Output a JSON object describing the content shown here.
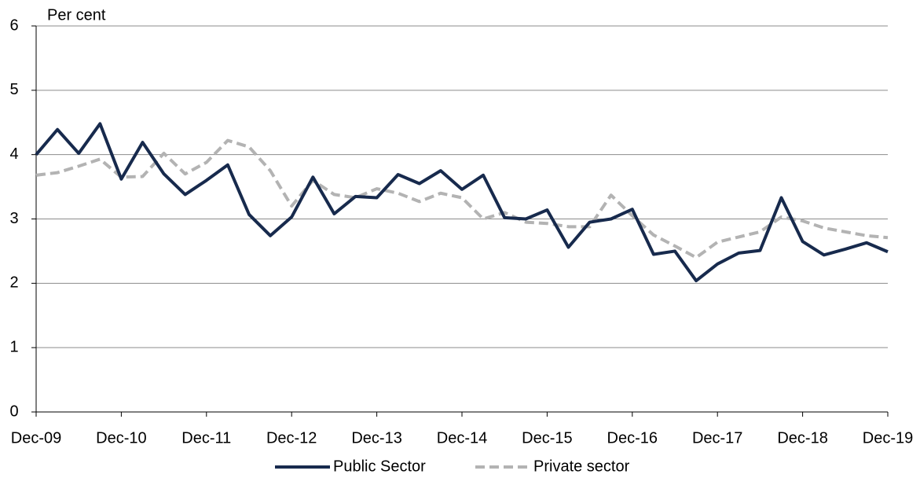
{
  "chart_data": {
    "type": "line",
    "y_label": "Per cent",
    "categories": [
      "Dec-09",
      null,
      null,
      null,
      "Dec-10",
      null,
      null,
      null,
      "Dec-11",
      null,
      null,
      null,
      "Dec-12",
      null,
      null,
      null,
      "Dec-13",
      null,
      null,
      null,
      "Dec-14",
      null,
      null,
      null,
      "Dec-15",
      null,
      null,
      null,
      "Dec-16",
      null,
      null,
      null,
      "Dec-17",
      null,
      null,
      null,
      "Dec-18",
      null,
      null,
      null,
      "Dec-19"
    ],
    "series": [
      {
        "name": "Public Sector",
        "color": "#172a4d",
        "dash": false,
        "values": [
          4.0,
          4.39,
          4.02,
          4.48,
          3.62,
          4.19,
          3.7,
          3.38,
          3.6,
          3.84,
          3.07,
          2.74,
          3.03,
          3.65,
          3.08,
          3.35,
          3.33,
          3.69,
          3.55,
          3.75,
          3.46,
          3.68,
          3.02,
          3.0,
          3.14,
          2.56,
          2.95,
          3.0,
          3.15,
          2.45,
          2.5,
          2.04,
          2.3,
          2.47,
          2.51,
          3.33,
          2.65,
          2.44,
          2.53,
          2.63,
          2.49
        ]
      },
      {
        "name": "Private sector",
        "color": "#b3b3b3",
        "dash": true,
        "values": [
          3.68,
          3.72,
          3.82,
          3.93,
          3.65,
          3.66,
          4.02,
          3.7,
          3.88,
          4.22,
          4.12,
          3.75,
          3.2,
          3.6,
          3.38,
          3.33,
          3.47,
          3.4,
          3.27,
          3.4,
          3.33,
          3.0,
          3.1,
          2.95,
          2.93,
          2.88,
          2.88,
          3.37,
          3.05,
          2.75,
          2.58,
          2.4,
          2.64,
          2.72,
          2.8,
          3.03,
          2.97,
          2.86,
          2.8,
          2.74,
          2.71
        ]
      }
    ],
    "ylim": [
      0,
      6
    ],
    "yticks": [
      0,
      1,
      2,
      3,
      4,
      5,
      6
    ],
    "grid": true
  }
}
